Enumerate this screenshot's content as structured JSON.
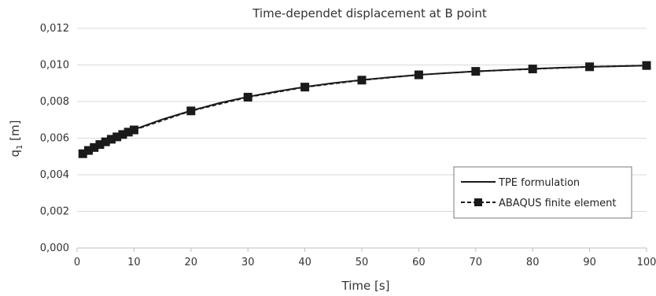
{
  "chart_data": {
    "type": "line",
    "title": "Time-dependet displacement at B point",
    "xlabel": "Time [s]",
    "ylabel": "q",
    "ylabel_sub": "1",
    "ylabel_unit": " [m]",
    "xlim": [
      0,
      100
    ],
    "ylim": [
      0,
      0.012
    ],
    "xticks": [
      0,
      10,
      20,
      30,
      40,
      50,
      60,
      70,
      80,
      90,
      100
    ],
    "xtick_labels": [
      "0",
      "10",
      "20",
      "30",
      "40",
      "50",
      "60",
      "70",
      "80",
      "90",
      "100"
    ],
    "yticks": [
      0,
      0.002,
      0.004,
      0.006,
      0.008,
      0.01,
      0.012
    ],
    "ytick_labels": [
      "0,000",
      "0,002",
      "0,004",
      "0,006",
      "0,008",
      "0,010",
      "0,012"
    ],
    "grid": "horizontal",
    "legend_position": "bottom-right",
    "series": [
      {
        "name": "TPE formulation",
        "style": "solid",
        "color": "#1a1a1a",
        "x": [
          1,
          2,
          3,
          4,
          5,
          6,
          7,
          8,
          9,
          10,
          15,
          20,
          25,
          30,
          35,
          40,
          45,
          50,
          55,
          60,
          65,
          70,
          75,
          80,
          85,
          90,
          95,
          100
        ],
        "y": [
          0.00517,
          0.00535,
          0.00551,
          0.00567,
          0.00581,
          0.00596,
          0.00609,
          0.00622,
          0.00635,
          0.00647,
          0.00703,
          0.0075,
          0.00792,
          0.00826,
          0.00855,
          0.0088,
          0.00901,
          0.00918,
          0.00933,
          0.00946,
          0.00956,
          0.00965,
          0.00972,
          0.00979,
          0.00985,
          0.0099,
          0.00993,
          0.00997
        ]
      },
      {
        "name": "ABAQUS finite element",
        "style": "dashed-square",
        "color": "#1a1a1a",
        "x": [
          1,
          2,
          3,
          4,
          5,
          6,
          7,
          8,
          9,
          10,
          20,
          30,
          40,
          50,
          60,
          70,
          80,
          90,
          100
        ],
        "y": [
          0.00515,
          0.00533,
          0.00549,
          0.00565,
          0.0058,
          0.00594,
          0.00607,
          0.0062,
          0.00633,
          0.00645,
          0.00749,
          0.00824,
          0.00879,
          0.00917,
          0.00946,
          0.00965,
          0.00978,
          0.0099,
          0.00997
        ]
      }
    ]
  }
}
